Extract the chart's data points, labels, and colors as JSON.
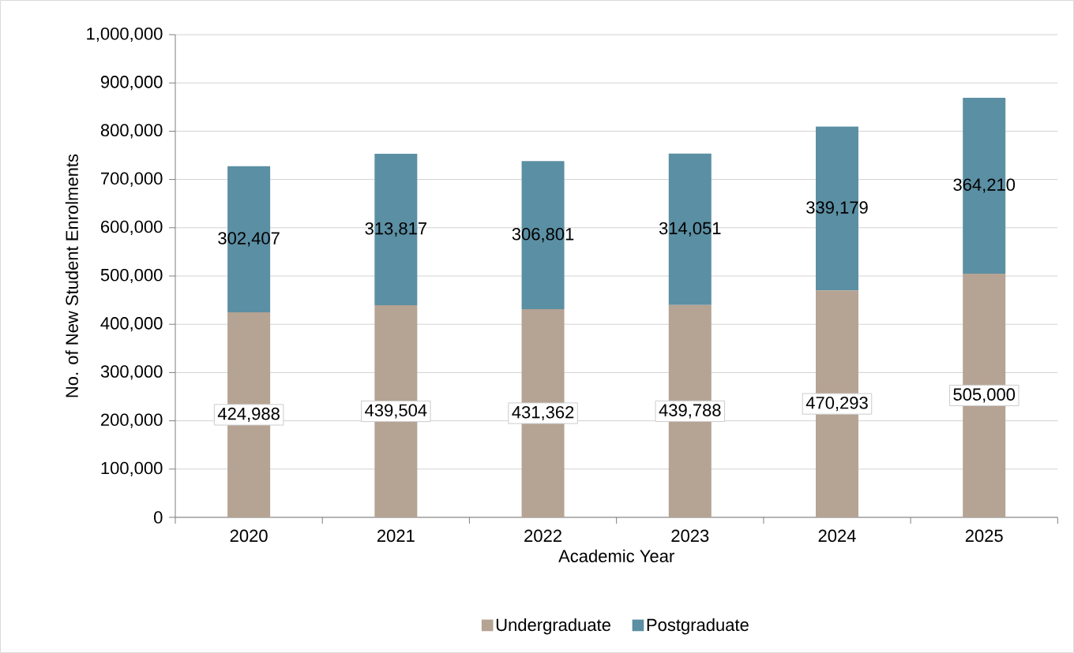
{
  "chart_data": {
    "type": "bar",
    "stacked": true,
    "xlabel": "Academic Year",
    "ylabel": "No. of New Student Enrolments",
    "categories": [
      "2020",
      "2021",
      "2022",
      "2023",
      "2024",
      "2025"
    ],
    "series": [
      {
        "name": "Undergraduate",
        "color": "#b5a393",
        "values": [
          424988,
          439504,
          431362,
          439788,
          470293,
          505000
        ],
        "value_labels": [
          "424,988",
          "439,504",
          "431,362",
          "439,788",
          "470,293",
          "505,000"
        ]
      },
      {
        "name": "Postgraduate",
        "color": "#5b8fa3",
        "values": [
          302407,
          313817,
          306801,
          314051,
          339179,
          364210
        ],
        "value_labels": [
          "302,407",
          "313,817",
          "306,801",
          "314,051",
          "339,179",
          "364,210"
        ]
      }
    ],
    "ylim": [
      0,
      1000000
    ],
    "yticks": [
      {
        "value": 0,
        "label": "0"
      },
      {
        "value": 100000,
        "label": "100,000"
      },
      {
        "value": 200000,
        "label": "200,000"
      },
      {
        "value": 300000,
        "label": "300,000"
      },
      {
        "value": 400000,
        "label": "400,000"
      },
      {
        "value": 500000,
        "label": "500,000"
      },
      {
        "value": 600000,
        "label": "600,000"
      },
      {
        "value": 700000,
        "label": "700,000"
      },
      {
        "value": 800000,
        "label": "800,000"
      },
      {
        "value": 900000,
        "label": "900,000"
      },
      {
        "value": 1000000,
        "label": "1,000,000"
      }
    ],
    "grid": "y",
    "legend": "bottom"
  }
}
